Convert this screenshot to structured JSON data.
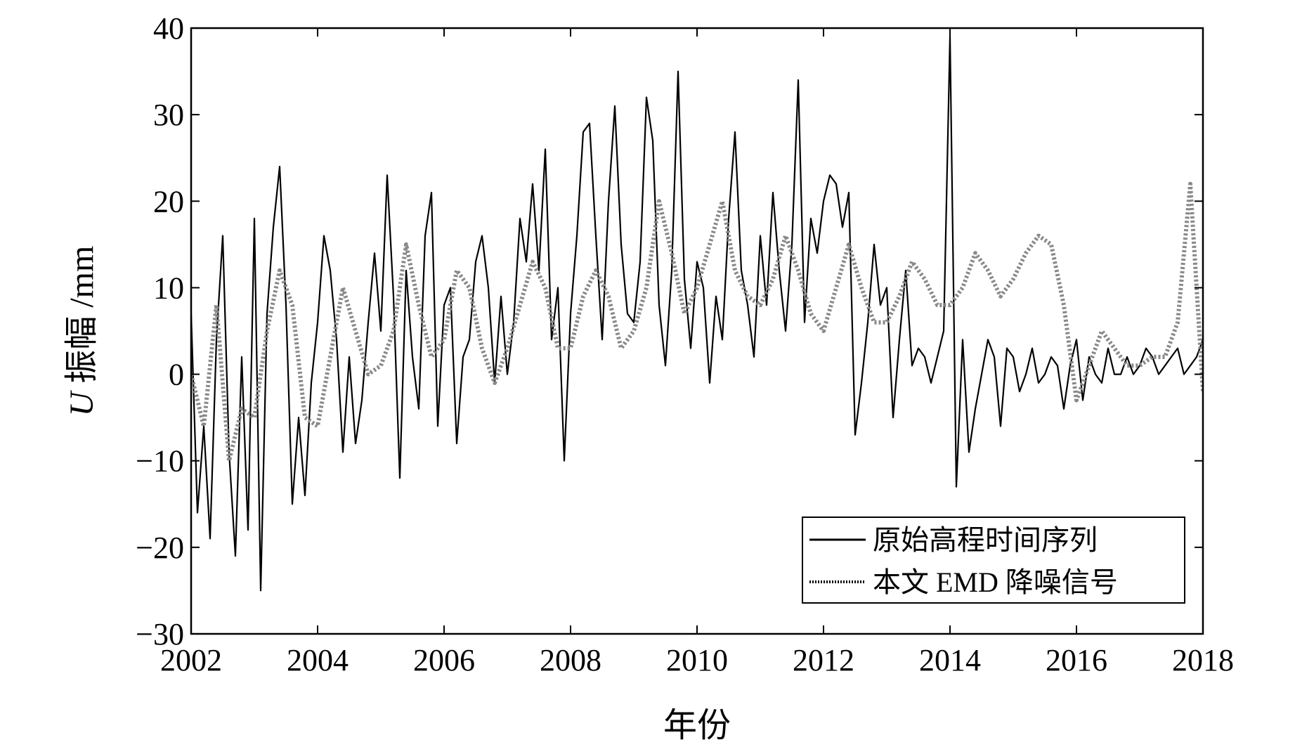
{
  "chart_data": {
    "type": "line",
    "title": "",
    "xlabel": "年份",
    "ylabel_italic": "U",
    "ylabel_rest": " 振幅 /mm",
    "xlim": [
      2002,
      2018
    ],
    "ylim": [
      -30,
      40
    ],
    "xticks": [
      2002,
      2004,
      2006,
      2008,
      2010,
      2012,
      2014,
      2016,
      2018
    ],
    "yticks": [
      -30,
      -20,
      -10,
      0,
      10,
      20,
      30,
      40
    ],
    "xtick_labels": [
      "2002",
      "2004",
      "2006",
      "2008",
      "2010",
      "2012",
      "2014",
      "2016",
      "2018"
    ],
    "ytick_labels": [
      "−30",
      "−20",
      "−10",
      "0",
      "10",
      "20",
      "30",
      "40"
    ],
    "grid": false,
    "legend_position": "bottom-right",
    "series": [
      {
        "name": "原始高程时间序列",
        "color": "#000000",
        "style": "solid",
        "x": [
          2002.0,
          2002.1,
          2002.2,
          2002.3,
          2002.4,
          2002.5,
          2002.6,
          2002.7,
          2002.8,
          2002.9,
          2003.0,
          2003.1,
          2003.2,
          2003.3,
          2003.4,
          2003.5,
          2003.6,
          2003.7,
          2003.8,
          2003.9,
          2004.0,
          2004.1,
          2004.2,
          2004.3,
          2004.4,
          2004.5,
          2004.6,
          2004.7,
          2004.8,
          2004.9,
          2005.0,
          2005.1,
          2005.2,
          2005.3,
          2005.4,
          2005.5,
          2005.6,
          2005.7,
          2005.8,
          2005.9,
          2006.0,
          2006.1,
          2006.2,
          2006.3,
          2006.4,
          2006.5,
          2006.6,
          2006.7,
          2006.8,
          2006.9,
          2007.0,
          2007.1,
          2007.2,
          2007.3,
          2007.4,
          2007.5,
          2007.6,
          2007.7,
          2007.8,
          2007.9,
          2008.0,
          2008.1,
          2008.2,
          2008.3,
          2008.4,
          2008.5,
          2008.6,
          2008.7,
          2008.8,
          2008.9,
          2009.0,
          2009.1,
          2009.2,
          2009.3,
          2009.4,
          2009.5,
          2009.6,
          2009.7,
          2009.8,
          2009.9,
          2010.0,
          2010.1,
          2010.2,
          2010.3,
          2010.4,
          2010.5,
          2010.6,
          2010.7,
          2010.8,
          2010.9,
          2011.0,
          2011.1,
          2011.2,
          2011.3,
          2011.4,
          2011.5,
          2011.6,
          2011.7,
          2011.8,
          2011.9,
          2012.0,
          2012.1,
          2012.2,
          2012.3,
          2012.4,
          2012.5,
          2012.6,
          2012.7,
          2012.8,
          2012.9,
          2013.0,
          2013.1,
          2013.2,
          2013.3,
          2013.4,
          2013.5,
          2013.6,
          2013.7,
          2013.8,
          2013.9,
          2014.0,
          2014.1,
          2014.2,
          2014.3,
          2014.4,
          2014.5,
          2014.6,
          2014.7,
          2014.8,
          2014.9,
          2015.0,
          2015.1,
          2015.2,
          2015.3,
          2015.4,
          2015.5,
          2015.6,
          2015.7,
          2015.8,
          2015.9,
          2016.0,
          2016.1,
          2016.2,
          2016.3,
          2016.4,
          2016.5,
          2016.6,
          2016.7,
          2016.8,
          2016.9,
          2017.0,
          2017.1,
          2017.2,
          2017.3,
          2017.4,
          2017.5,
          2017.6,
          2017.7,
          2017.8,
          2017.9,
          2018.0
        ],
        "y": [
          7,
          -16,
          -6,
          -19,
          4,
          16,
          -9,
          -21,
          2,
          -18,
          18,
          -25,
          7,
          17,
          24,
          8,
          -15,
          -5,
          -14,
          -1,
          6,
          16,
          12,
          4,
          -9,
          2,
          -8,
          -3,
          6,
          14,
          5,
          23,
          9,
          -12,
          12,
          2,
          -4,
          16,
          21,
          -6,
          8,
          10,
          -8,
          2,
          4,
          13,
          16,
          10,
          -1,
          9,
          0,
          6,
          18,
          13,
          22,
          12,
          26,
          4,
          10,
          -10,
          7,
          16,
          28,
          29,
          16,
          4,
          20,
          31,
          15,
          7,
          6,
          13,
          32,
          27,
          8,
          1,
          12,
          35,
          11,
          3,
          13,
          10,
          -1,
          9,
          4,
          18,
          28,
          12,
          8,
          2,
          16,
          8,
          21,
          12,
          5,
          15,
          34,
          6,
          18,
          14,
          20,
          23,
          22,
          17,
          21,
          -7,
          -1,
          6,
          15,
          8,
          10,
          -5,
          4,
          12,
          1,
          3,
          2,
          -1,
          2,
          5,
          39,
          -13,
          4,
          -9,
          -4,
          0,
          4,
          2,
          -6,
          3,
          2,
          -2,
          0,
          3,
          -1,
          0,
          2,
          1,
          -4,
          1,
          4,
          -3,
          2,
          0,
          -1,
          3,
          0,
          0,
          2,
          0,
          1,
          3,
          2,
          0,
          1,
          2,
          3,
          0,
          1,
          2,
          4
        ]
      },
      {
        "name": "本文 EMD 降噪信号",
        "color": "#888888",
        "style": "dotted",
        "x": [
          2002.0,
          2002.2,
          2002.4,
          2002.6,
          2002.8,
          2003.0,
          2003.2,
          2003.4,
          2003.6,
          2003.8,
          2004.0,
          2004.2,
          2004.4,
          2004.6,
          2004.8,
          2005.0,
          2005.2,
          2005.4,
          2005.6,
          2005.8,
          2006.0,
          2006.2,
          2006.4,
          2006.6,
          2006.8,
          2007.0,
          2007.2,
          2007.4,
          2007.6,
          2007.8,
          2008.0,
          2008.2,
          2008.4,
          2008.6,
          2008.8,
          2009.0,
          2009.2,
          2009.4,
          2009.6,
          2009.8,
          2010.0,
          2010.2,
          2010.4,
          2010.6,
          2010.8,
          2011.0,
          2011.2,
          2011.4,
          2011.6,
          2011.8,
          2012.0,
          2012.2,
          2012.4,
          2012.6,
          2012.8,
          2013.0,
          2013.2,
          2013.4,
          2013.6,
          2013.8,
          2014.0,
          2014.2,
          2014.4,
          2014.6,
          2014.8,
          2015.0,
          2015.2,
          2015.4,
          2015.6,
          2015.8,
          2016.0,
          2016.2,
          2016.4,
          2016.6,
          2016.8,
          2017.0,
          2017.2,
          2017.4,
          2017.6,
          2017.8,
          2018.0
        ],
        "y": [
          0,
          -6,
          8,
          -10,
          -4,
          -5,
          5,
          12,
          8,
          -5,
          -6,
          2,
          10,
          5,
          0,
          1,
          5,
          15,
          8,
          2,
          4,
          12,
          10,
          3,
          -1,
          3,
          8,
          13,
          10,
          3,
          3,
          9,
          12,
          9,
          3,
          5,
          10,
          20,
          14,
          7,
          10,
          15,
          20,
          12,
          9,
          8,
          11,
          16,
          12,
          7,
          5,
          10,
          15,
          10,
          6,
          6,
          9,
          13,
          11,
          8,
          8,
          10,
          14,
          12,
          9,
          11,
          14,
          16,
          15,
          8,
          -3,
          1,
          5,
          3,
          1,
          1,
          2,
          2,
          6,
          22,
          -2
        ]
      }
    ]
  }
}
